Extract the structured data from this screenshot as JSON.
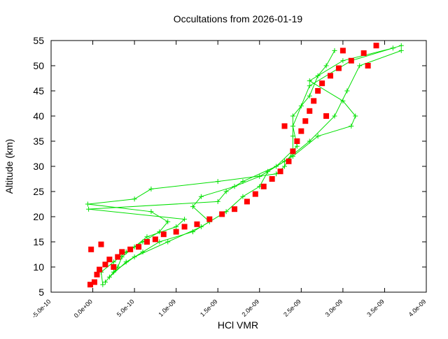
{
  "chart_data": {
    "type": "scatter",
    "title": "Occultations from 2026-01-19",
    "xlabel": "HCl VMR",
    "ylabel": "Altitude (km)",
    "xlim": [
      -5e-10,
      4e-09
    ],
    "xticks": [
      {
        "value": -5e-10,
        "label": "-5.0e-10"
      },
      {
        "value": 0,
        "label": "0.0e+00"
      },
      {
        "value": 5e-10,
        "label": "5.0e-10"
      },
      {
        "value": 1e-09,
        "label": "1.0e-09"
      },
      {
        "value": 1.5e-09,
        "label": "1.5e-09"
      },
      {
        "value": 2e-09,
        "label": "2.0e-09"
      },
      {
        "value": 2.5e-09,
        "label": "2.5e-09"
      },
      {
        "value": 3e-09,
        "label": "3.0e-09"
      },
      {
        "value": 3.5e-09,
        "label": "3.5e-09"
      },
      {
        "value": 4e-09,
        "label": "4.0e-09"
      }
    ],
    "ylim": [
      5,
      55
    ],
    "yticks": [
      5,
      10,
      15,
      20,
      25,
      30,
      35,
      40,
      45,
      50,
      55
    ],
    "series": [
      {
        "color": "#00e000",
        "style": "linespoints",
        "x": [
          1.2e-10,
          1e-10,
          2.5e-10,
          4e-10,
          6e-10,
          8e-10,
          9e-10,
          7e-10,
          -6e-11,
          5e-10,
          7e-10,
          1.5e-09,
          2.2e-09,
          2.3e-09,
          2.4e-09,
          2.4e-09,
          2.4e-09,
          2.6e-09,
          2.7e-09,
          2.8e-09,
          2.9e-09
        ],
        "y": [
          6.5,
          9,
          11,
          13,
          15,
          17,
          19,
          21,
          22.5,
          23.5,
          25.5,
          27,
          28.5,
          30,
          33,
          36,
          40,
          44,
          48,
          50,
          53
        ]
      },
      {
        "color": "#00e000",
        "style": "linespoints",
        "x": [
          1.5e-10,
          3e-10,
          3.5e-10,
          5e-10,
          6.5e-10,
          1e-09,
          1.1e-09,
          -5e-11,
          1.5e-09,
          1.6e-09,
          1.8e-09,
          2.2e-09,
          2.45e-09,
          2.4e-09,
          2.5e-09,
          2.6e-09,
          3.1e-09,
          3.7e-09
        ],
        "y": [
          7,
          10,
          12,
          14,
          16,
          18,
          19.5,
          21.5,
          23,
          25,
          27,
          30,
          34,
          38,
          42,
          46,
          51,
          54
        ]
      },
      {
        "color": "#00e000",
        "style": "linespoints",
        "x": [
          2e-10,
          4e-10,
          6e-10,
          8e-10,
          1.2e-09,
          1.4e-09,
          1.2e-09,
          1.3e-09,
          1.7e-09,
          2e-09,
          2.3e-09,
          2.6e-09,
          2.9e-09,
          3.05e-09,
          3.2e-09,
          3.7e-09
        ],
        "y": [
          8,
          11,
          13,
          15,
          17,
          19,
          22,
          24,
          26,
          28,
          31,
          35,
          40,
          45,
          50,
          53
        ]
      },
      {
        "color": "#00e000",
        "style": "linespoints",
        "x": [
          2.5e-10,
          5e-10,
          9e-10,
          1.3e-09,
          1.6e-09,
          1.8e-09,
          2e-09,
          2.1e-09,
          2.4e-09,
          2.7e-09,
          3.1e-09,
          3.15e-09,
          3e-09,
          2.6e-09,
          3e-09,
          3.6e-09
        ],
        "y": [
          9,
          12,
          15,
          18,
          21,
          24,
          26,
          29,
          32,
          36,
          38,
          40,
          43,
          47,
          51,
          53.5
        ]
      },
      {
        "color": "#ff0000",
        "style": "points",
        "x": [
          -3e-11,
          2e-11,
          5e-11,
          8e-11,
          1.5e-10,
          2e-10,
          3e-10,
          3.5e-10,
          4.5e-10,
          5.5e-10,
          6.5e-10,
          7.5e-10,
          8.5e-10,
          1e-09,
          1.1e-09,
          1.25e-09,
          1.4e-09,
          1.55e-09,
          1.7e-09,
          1.85e-09,
          1.95e-09,
          2.05e-09,
          2.15e-09,
          2.25e-09,
          2.35e-09,
          2.4e-09,
          2.45e-09,
          2.5e-09,
          2.55e-09,
          2.6e-09,
          2.65e-09,
          2.7e-09,
          2.75e-09,
          2.85e-09,
          2.95e-09,
          3.1e-09,
          3.25e-09,
          3.4e-09,
          -2e-11,
          1e-10,
          2.5e-10,
          2.3e-09,
          2.8e-09,
          3e-09,
          3.3e-09
        ],
        "y": [
          6.5,
          7,
          8.5,
          9.5,
          10.5,
          11.5,
          12,
          13,
          13.5,
          14,
          15,
          15.5,
          16.5,
          17,
          18,
          18.5,
          19.5,
          20.5,
          21.5,
          23,
          24.5,
          26,
          27.5,
          29,
          31,
          33,
          35,
          37,
          39,
          41,
          43,
          45,
          46.5,
          48,
          49.5,
          51,
          52.5,
          54,
          13.5,
          14.5,
          10,
          38,
          40,
          53,
          50
        ]
      }
    ]
  }
}
